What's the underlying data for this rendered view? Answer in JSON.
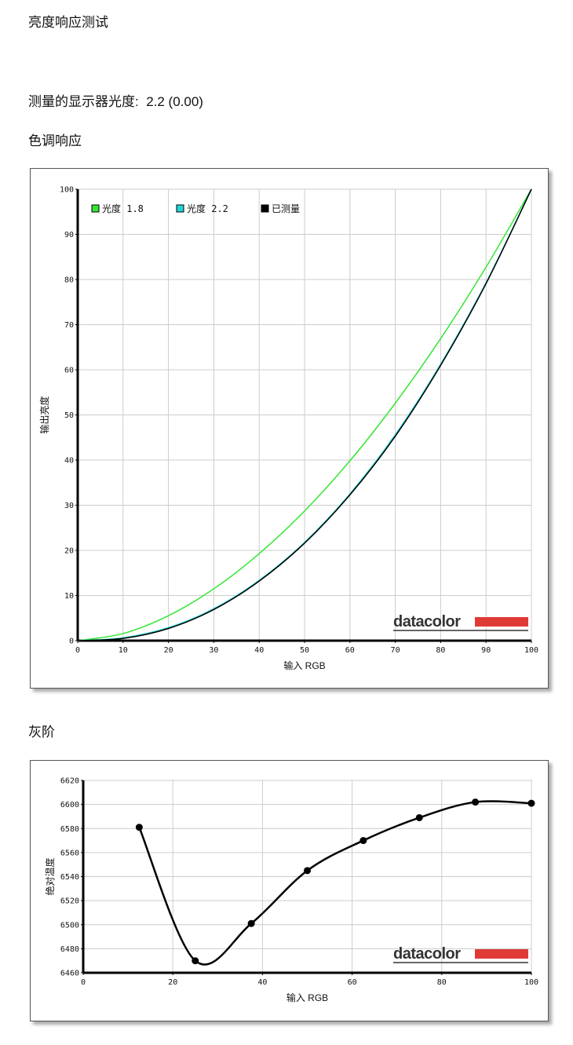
{
  "header": {
    "title": "亮度响应测试"
  },
  "summary": {
    "label": "测量的显示器光度:",
    "value": "2.2 (0.00)"
  },
  "sections": [
    {
      "title": "色调响应"
    },
    {
      "title": "灰阶"
    }
  ],
  "chart_data": [
    {
      "type": "line",
      "xlabel": "输入 RGB",
      "ylabel": "输出亮度",
      "watermark": "datacolor",
      "x": [
        0,
        10,
        20,
        30,
        40,
        50,
        60,
        70,
        80,
        90,
        100
      ],
      "series": [
        {
          "name": "光度 1.8",
          "color": "#33e633",
          "values": [
            0,
            1.58,
            5.54,
            11.49,
            19.28,
            28.72,
            39.84,
            52.61,
            66.92,
            82.74,
            100
          ]
        },
        {
          "name": "光度 2.2",
          "color": "#22d4d4",
          "values": [
            0,
            0.63,
            2.89,
            7.07,
            13.35,
            21.76,
            32.51,
            45.61,
            61.23,
            79.29,
            100
          ]
        },
        {
          "name": "已测量",
          "color": "#000000",
          "values": [
            0,
            0.5,
            2.7,
            6.9,
            13.2,
            21.6,
            32.3,
            45.3,
            61.0,
            79.1,
            100
          ]
        }
      ],
      "xlim": [
        0,
        100
      ],
      "ylim": [
        0,
        100
      ],
      "xticks": [
        0,
        10,
        20,
        30,
        40,
        50,
        60,
        70,
        80,
        90,
        100
      ],
      "yticks": [
        0,
        10,
        20,
        30,
        40,
        50,
        60,
        70,
        80,
        90,
        100
      ],
      "grid": true,
      "legend": "top-left",
      "smooth": true
    },
    {
      "type": "line",
      "xlabel": "输入 RGB",
      "ylabel": "绝对温度",
      "watermark": "datacolor",
      "x": [
        12.5,
        25,
        37.5,
        50,
        62.5,
        75,
        87.5,
        100
      ],
      "series": [
        {
          "color": "#000000",
          "values": [
            6581,
            6470,
            6501,
            6545,
            6570,
            6589,
            6602,
            6601
          ]
        }
      ],
      "xlim": [
        0,
        100
      ],
      "ylim": [
        6460,
        6620
      ],
      "xticks": [
        0,
        20,
        40,
        60,
        80,
        100
      ],
      "yticks": [
        6460,
        6480,
        6500,
        6520,
        6540,
        6560,
        6580,
        6600,
        6620
      ],
      "grid": true,
      "smooth": true,
      "markers": true
    }
  ]
}
